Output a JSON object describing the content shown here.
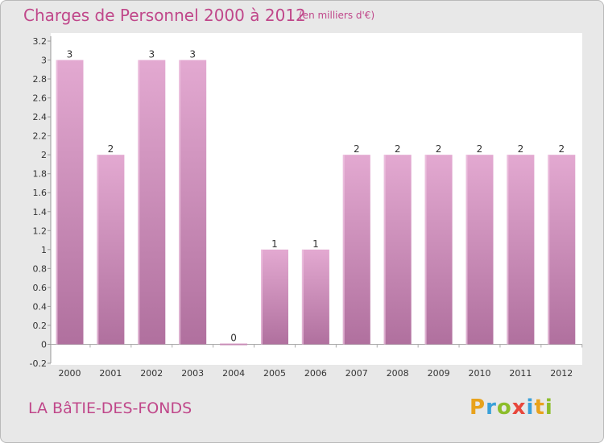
{
  "title": "Charges de Personnel 2000 à 2012",
  "unit_note": "(en milliers d'€)",
  "commune": "LA BâTIE-DES-FONDS",
  "logo": {
    "letters": [
      "P",
      "r",
      "o",
      "x",
      "i",
      "t",
      "i"
    ],
    "colors": [
      "#e8a21c",
      "#3aa0d9",
      "#8cbd2a",
      "#e8463b",
      "#3aa0d9",
      "#e8a21c",
      "#8cbd2a"
    ]
  },
  "colors": {
    "bar_top": "#e3a9d1",
    "bar_bottom": "#b0709e",
    "text": "#c0478a",
    "plot_bg": "#ffffff",
    "grid": "#cfcfcf"
  },
  "chart_data": {
    "type": "bar",
    "title": "Charges de Personnel 2000 à 2012",
    "categories": [
      "2000",
      "2001",
      "2002",
      "2003",
      "2004",
      "2005",
      "2006",
      "2007",
      "2008",
      "2009",
      "2010",
      "2011",
      "2012"
    ],
    "values": [
      3,
      2,
      3,
      3,
      0,
      1,
      1,
      2,
      2,
      2,
      2,
      2,
      2
    ],
    "data_labels": [
      "3",
      "2",
      "3",
      "3",
      "0",
      "1",
      "1",
      "2",
      "2",
      "2",
      "2",
      "2",
      "2"
    ],
    "y_ticks": [
      "-0.2",
      "0",
      "0.2",
      "0.4",
      "0.6",
      "0.8",
      "1",
      "1.2",
      "1.4",
      "1.6",
      "1.8",
      "2",
      "2.2",
      "2.4",
      "2.6",
      "2.8",
      "3",
      "3.2"
    ],
    "ylim": [
      -0.2,
      3.2
    ],
    "xlabel": "",
    "ylabel": "",
    "grid": false,
    "legend": "none"
  }
}
